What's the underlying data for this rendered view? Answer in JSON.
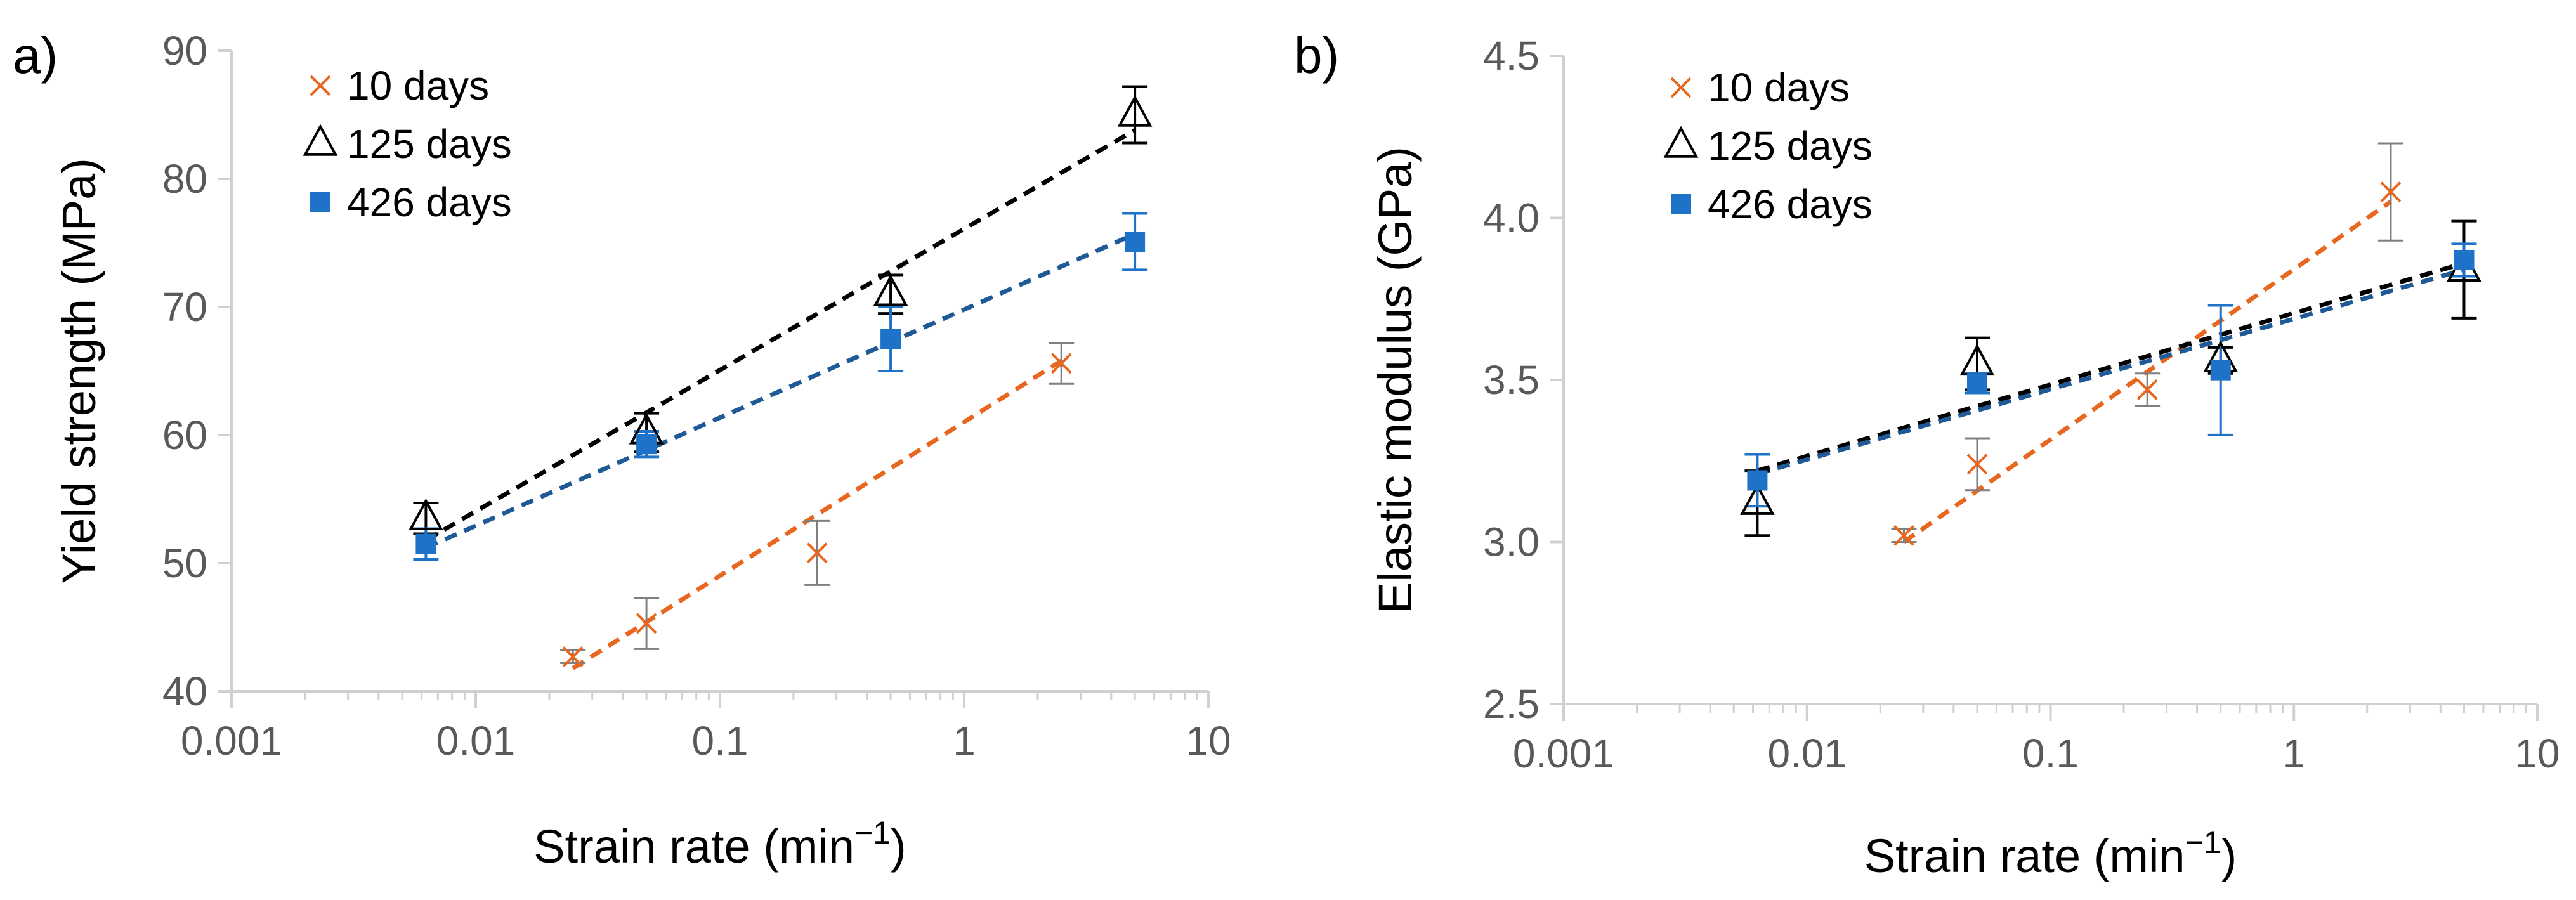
{
  "colors": {
    "d10": "#E8661E",
    "d125": "#000000",
    "d426": "#1E72C8",
    "fit426": "#1F5A96",
    "axis": "#D0D0D0",
    "tick_text": "#595959",
    "errorbar_10": "#7F7F7F"
  },
  "chart_data": [
    {
      "panel_label": "a)",
      "type": "scatter",
      "xscale": "log",
      "xlim": [
        0.001,
        10
      ],
      "ylim": [
        40,
        90
      ],
      "xticks": [
        "0.001",
        "0.01",
        "0.1",
        "1",
        "10"
      ],
      "yticks": [
        "40",
        "50",
        "60",
        "70",
        "80",
        "90"
      ],
      "xlabel": "Strain rate (min",
      "xlabel_exp": "−1",
      "xlabel_end": ")",
      "ylabel": "Yield strength (MPa)",
      "legend_position": "top-left",
      "series": [
        {
          "name": "10 days",
          "marker": "x",
          "color_key": "d10",
          "errorbar_color_key": "errorbar_10",
          "x": [
            0.025,
            0.05,
            0.25,
            2.5
          ],
          "y": [
            42.7,
            45.3,
            50.8,
            65.6
          ],
          "err": [
            0.5,
            2.0,
            2.5,
            1.6
          ],
          "fit": [
            [
              0.025,
              41.8
            ],
            [
              2.5,
              65.8
            ]
          ]
        },
        {
          "name": "125 days",
          "marker": "triangle",
          "color_key": "d125",
          "errorbar_color_key": "d125",
          "x": [
            0.00625,
            0.05,
            0.5,
            5
          ],
          "y": [
            53.5,
            60.2,
            71.0,
            85.0
          ],
          "err": [
            1.2,
            1.5,
            1.5,
            2.2
          ],
          "fit": [
            [
              0.00625,
              51.8
            ],
            [
              5,
              83.8
            ]
          ]
        },
        {
          "name": "426 days",
          "marker": "square",
          "color_key": "d426",
          "errorbar_color_key": "d426",
          "x": [
            0.00625,
            0.05,
            0.5,
            5
          ],
          "y": [
            51.5,
            59.3,
            67.5,
            75.1
          ],
          "err": [
            1.2,
            1.0,
            2.5,
            2.2
          ],
          "fit": [
            [
              0.00625,
              51.2
            ],
            [
              5,
              75.7
            ]
          ]
        }
      ]
    },
    {
      "panel_label": "b)",
      "type": "scatter",
      "xscale": "log",
      "xlim": [
        0.001,
        10
      ],
      "ylim": [
        2.5,
        4.5
      ],
      "xticks": [
        "0.001",
        "0.01",
        "0.1",
        "1",
        "10"
      ],
      "yticks": [
        "2.5",
        "3.0",
        "3.5",
        "4.0",
        "4.5"
      ],
      "xlabel": "Strain rate (min",
      "xlabel_exp": "−1",
      "xlabel_end": ")",
      "ylabel": "Elastic modulus (GPa)",
      "legend_position": "top-left",
      "series": [
        {
          "name": "10 days",
          "marker": "x",
          "color_key": "d10",
          "errorbar_color_key": "errorbar_10",
          "x": [
            0.025,
            0.05,
            0.25,
            2.5
          ],
          "y": [
            3.02,
            3.24,
            3.47,
            4.08
          ],
          "err": [
            0.02,
            0.08,
            0.05,
            0.15
          ],
          "fit": [
            [
              0.025,
              3.0
            ],
            [
              2.5,
              4.05
            ]
          ]
        },
        {
          "name": "125 days",
          "marker": "triangle",
          "color_key": "d125",
          "errorbar_color_key": "d125",
          "x": [
            0.00625,
            0.05,
            0.5,
            5
          ],
          "y": [
            3.12,
            3.55,
            3.56,
            3.84
          ],
          "err": [
            0.1,
            0.08,
            0.04,
            0.15
          ],
          "fit": [
            [
              0.00625,
              3.22
            ],
            [
              5,
              3.86
            ]
          ]
        },
        {
          "name": "426 days",
          "marker": "square",
          "color_key": "d426",
          "errorbar_color_key": "d426",
          "x": [
            0.00625,
            0.05,
            0.5,
            5
          ],
          "y": [
            3.19,
            3.49,
            3.53,
            3.87
          ],
          "err": [
            0.08,
            0.03,
            0.2,
            0.05
          ],
          "fit": [
            [
              0.00625,
              3.21
            ],
            [
              5,
              3.84
            ]
          ]
        }
      ]
    }
  ]
}
